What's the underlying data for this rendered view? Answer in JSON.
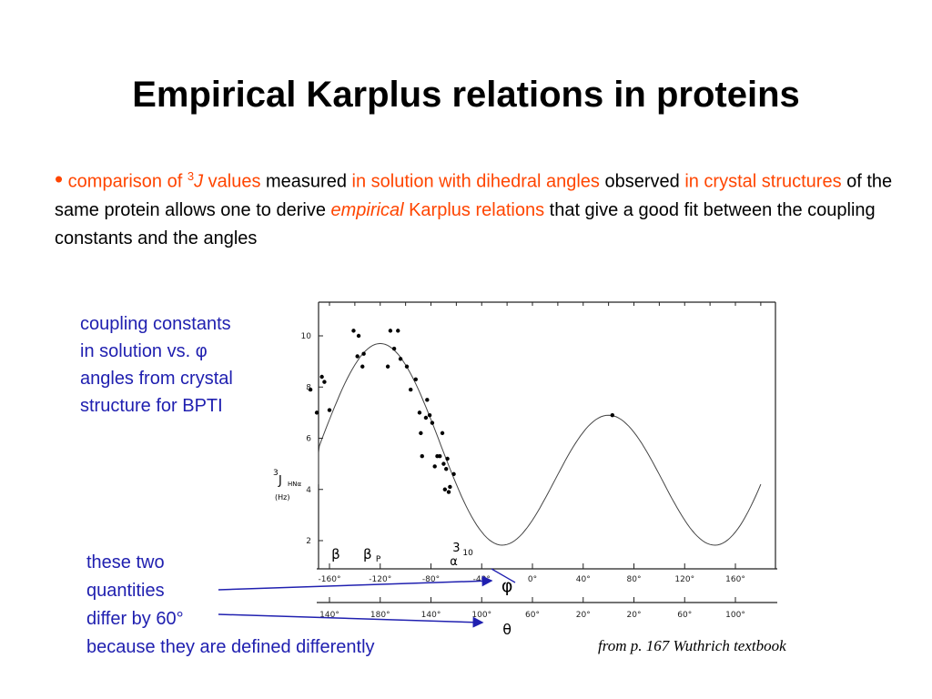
{
  "title": "Empirical Karplus relations in proteins",
  "bullet": {
    "p1": "comparison of ",
    "sup3": "3",
    "j": "J",
    "p2": " values",
    "p3": " measured ",
    "p4": "in solution with dihedral angles",
    "p5": " observed ",
    "p6": "in crystal structures",
    "p7": " of the same protein allows one to derive ",
    "p8": "empirical",
    "p9": " Karplus ",
    "p10": "relations",
    "p11": " that give a good fit between the coupling constants and the angles"
  },
  "caption_lines": [
    "coupling constants",
    "in solution vs. φ",
    "angles from crystal",
    "structure for BPTI"
  ],
  "note_lines": [
    "these two",
    "quantities",
    "differ by 60°",
    "because they are defined differently"
  ],
  "source": "from p. 167 Wuthrich textbook",
  "colors": {
    "accent_red": "#ff4500",
    "caption_blue": "#2020b0"
  },
  "chart_data": {
    "type": "scatter",
    "ylabel_main": "J",
    "ylabel_sup": "3",
    "ylabel_sub": "HNα",
    "yunit": "(Hz)",
    "ylim": [
      1.5,
      10.8
    ],
    "xlim": [
      -180,
      180
    ],
    "yticks": [
      2,
      4,
      6,
      8,
      10
    ],
    "phi_ticks": [
      "-160°",
      "-120°",
      "-80°",
      "-40°",
      "0°",
      "40°",
      "80°",
      "120°",
      "160°"
    ],
    "phi_values": [
      -160,
      -120,
      -80,
      -40,
      0,
      40,
      80,
      120,
      160
    ],
    "phi_label": "φ",
    "theta_ticks": [
      "140°",
      "180°",
      "140°",
      "100°",
      "60°",
      "20°",
      "20°",
      "60°",
      "100°"
    ],
    "theta_label": "θ",
    "annotations": [
      {
        "label": "β",
        "x": -155
      },
      {
        "label": "β",
        "sub": "P",
        "x": -130
      },
      {
        "label": "3",
        "sub": "10",
        "x": -60
      },
      {
        "label": "α",
        "x": -62
      }
    ],
    "curve": {
      "A": 6.4,
      "B": -1.4,
      "C": 1.9,
      "offset": -60
    },
    "points": [
      [
        -175,
        7.9
      ],
      [
        -170,
        7.0
      ],
      [
        -166,
        8.4
      ],
      [
        -164,
        8.2
      ],
      [
        -160,
        7.1
      ],
      [
        -141,
        10.2
      ],
      [
        -138,
        9.2
      ],
      [
        -137,
        10.0
      ],
      [
        -134,
        8.8
      ],
      [
        -133,
        9.3
      ],
      [
        -114,
        8.8
      ],
      [
        -112,
        10.2
      ],
      [
        -106,
        10.2
      ],
      [
        -109,
        9.5
      ],
      [
        -104,
        9.1
      ],
      [
        -99,
        8.8
      ],
      [
        -96,
        7.9
      ],
      [
        -92,
        8.3
      ],
      [
        -89,
        7.0
      ],
      [
        -88,
        6.2
      ],
      [
        -87,
        5.3
      ],
      [
        -84,
        6.8
      ],
      [
        -83,
        7.5
      ],
      [
        -81,
        6.9
      ],
      [
        -79,
        6.6
      ],
      [
        -77,
        4.9
      ],
      [
        -75,
        5.3
      ],
      [
        -73,
        5.3
      ],
      [
        -71,
        6.2
      ],
      [
        -70,
        5.0
      ],
      [
        -69,
        4.0
      ],
      [
        -68,
        4.8
      ],
      [
        -67,
        5.2
      ],
      [
        -66,
        3.9
      ],
      [
        -65,
        4.1
      ],
      [
        -62,
        4.6
      ],
      [
        63,
        6.9
      ]
    ]
  }
}
